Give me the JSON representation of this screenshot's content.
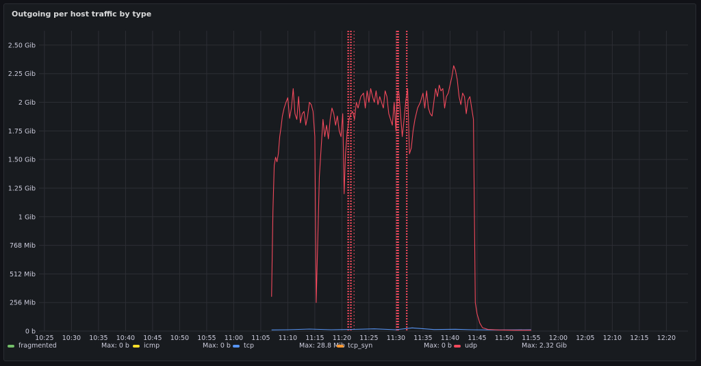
{
  "panel": {
    "title": "Outgoing per host traffic by type"
  },
  "chart_data": {
    "type": "line",
    "title": "Outgoing per host traffic by type",
    "y_axis": {
      "unit": "Gib",
      "range": [
        0,
        2.625
      ],
      "ticks": [
        {
          "value": 0,
          "label": "0 b"
        },
        {
          "value": 0.25,
          "label": "256 Mib"
        },
        {
          "value": 0.5,
          "label": "512 Mib"
        },
        {
          "value": 0.75,
          "label": "768 Mib"
        },
        {
          "value": 1.0,
          "label": "1 Gib"
        },
        {
          "value": 1.25,
          "label": "1.25 Gib"
        },
        {
          "value": 1.5,
          "label": "1.50 Gib"
        },
        {
          "value": 1.75,
          "label": "1.75 Gib"
        },
        {
          "value": 2.0,
          "label": "2 Gib"
        },
        {
          "value": 2.25,
          "label": "2.25 Gib"
        },
        {
          "value": 2.5,
          "label": "2.50 Gib"
        }
      ]
    },
    "x_axis": {
      "range": [
        "10:24",
        "12:24"
      ],
      "ticks": [
        "10:25",
        "10:30",
        "10:35",
        "10:40",
        "10:45",
        "10:50",
        "10:55",
        "11:00",
        "11:05",
        "11:10",
        "11:15",
        "11:20",
        "11:25",
        "11:30",
        "11:35",
        "11:40",
        "11:45",
        "11:50",
        "11:55",
        "12:00",
        "12:05",
        "12:10",
        "12:15",
        "12:20"
      ]
    },
    "grid": true,
    "legend_placement": "bottom",
    "series": [
      {
        "name": "fragmented",
        "color": "#73bf69",
        "max_label": "Max: 0 b",
        "values": []
      },
      {
        "name": "icmp",
        "color": "#fade2a",
        "max_label": "Max: 0 b",
        "values": []
      },
      {
        "name": "tcp",
        "color": "#5794f2",
        "max_label": "Max: 28.8 Mib",
        "values": [
          [
            "11:07",
            0.01
          ],
          [
            "11:10",
            0.012
          ],
          [
            "11:14",
            0.018
          ],
          [
            "11:18",
            0.012
          ],
          [
            "11:22",
            0.015
          ],
          [
            "11:26",
            0.02
          ],
          [
            "11:30",
            0.012
          ],
          [
            "11:33",
            0.028
          ],
          [
            "11:37",
            0.014
          ],
          [
            "11:41",
            0.016
          ],
          [
            "11:44",
            0.012
          ],
          [
            "11:48",
            0.01
          ],
          [
            "11:52",
            0.011
          ],
          [
            "11:55",
            0.012
          ]
        ]
      },
      {
        "name": "tcp_syn",
        "color": "#ff9830",
        "max_label": "Max: 0 b",
        "values": []
      },
      {
        "name": "udp",
        "color": "#f2495c",
        "max_label": "Max: 2.32 Gib",
        "values": [
          [
            "11:07:00",
            0.3
          ],
          [
            "11:07:15",
            1.05
          ],
          [
            "11:07:30",
            1.45
          ],
          [
            "11:07:45",
            1.52
          ],
          [
            "11:08:00",
            1.48
          ],
          [
            "11:08:15",
            1.55
          ],
          [
            "11:08:30",
            1.7
          ],
          [
            "11:08:45",
            1.78
          ],
          [
            "11:09:00",
            1.88
          ],
          [
            "11:09:20",
            1.95
          ],
          [
            "11:09:40",
            2.0
          ],
          [
            "11:10:00",
            2.04
          ],
          [
            "11:10:20",
            1.86
          ],
          [
            "11:10:40",
            1.95
          ],
          [
            "11:11:00",
            2.12
          ],
          [
            "11:11:20",
            1.9
          ],
          [
            "11:11:40",
            1.85
          ],
          [
            "11:12:00",
            2.05
          ],
          [
            "11:12:20",
            1.82
          ],
          [
            "11:12:40",
            1.9
          ],
          [
            "11:13:00",
            1.92
          ],
          [
            "11:13:20",
            1.8
          ],
          [
            "11:13:40",
            1.88
          ],
          [
            "11:14:00",
            2.0
          ],
          [
            "11:14:20",
            1.98
          ],
          [
            "11:14:40",
            1.92
          ],
          [
            "11:15:00",
            1.7
          ],
          [
            "11:15:15",
            0.25
          ],
          [
            "11:15:30",
            0.7
          ],
          [
            "11:15:50",
            1.35
          ],
          [
            "11:16:10",
            1.6
          ],
          [
            "11:16:30",
            1.85
          ],
          [
            "11:16:50",
            1.7
          ],
          [
            "11:17:10",
            1.8
          ],
          [
            "11:17:30",
            1.68
          ],
          [
            "11:17:50",
            1.85
          ],
          [
            "11:18:10",
            1.95
          ],
          [
            "11:18:30",
            1.9
          ],
          [
            "11:18:50",
            1.8
          ],
          [
            "11:19:10",
            1.88
          ],
          [
            "11:19:30",
            1.75
          ],
          [
            "11:19:50",
            1.7
          ],
          [
            "11:20:10",
            1.9
          ],
          [
            "11:20:25",
            1.2
          ],
          [
            "11:20:40",
            1.55
          ],
          [
            "11:21:00",
            1.75
          ],
          [
            "11:21:20",
            1.85
          ],
          [
            "11:21:40",
            1.9
          ],
          [
            "11:22:00",
            1.92
          ],
          [
            "11:22:20",
            1.85
          ],
          [
            "11:22:40",
            2.0
          ],
          [
            "11:23:00",
            1.95
          ],
          [
            "11:23:30",
            2.05
          ],
          [
            "11:24:00",
            2.08
          ],
          [
            "11:24:20",
            1.95
          ],
          [
            "11:24:40",
            2.1
          ],
          [
            "11:25:00",
            2.0
          ],
          [
            "11:25:20",
            2.12
          ],
          [
            "11:25:40",
            2.05
          ],
          [
            "11:26:00",
            2.0
          ],
          [
            "11:26:20",
            2.1
          ],
          [
            "11:26:40",
            1.98
          ],
          [
            "11:27:00",
            2.05
          ],
          [
            "11:27:20",
            2.0
          ],
          [
            "11:27:40",
            1.95
          ],
          [
            "11:28:00",
            2.1
          ],
          [
            "11:28:20",
            2.05
          ],
          [
            "11:28:40",
            1.9
          ],
          [
            "11:29:00",
            1.85
          ],
          [
            "11:29:20",
            1.8
          ],
          [
            "11:29:40",
            2.0
          ],
          [
            "11:30:00",
            1.75
          ],
          [
            "11:30:15",
            2.08
          ],
          [
            "11:30:30",
            2.1
          ],
          [
            "11:30:50",
            1.9
          ],
          [
            "11:31:10",
            1.7
          ],
          [
            "11:31:30",
            1.85
          ],
          [
            "11:31:50",
            2.02
          ],
          [
            "11:32:10",
            2.12
          ],
          [
            "11:32:30",
            1.55
          ],
          [
            "11:32:50",
            1.6
          ],
          [
            "11:33:10",
            1.75
          ],
          [
            "11:33:30",
            1.85
          ],
          [
            "11:34:00",
            1.95
          ],
          [
            "11:34:30",
            2.0
          ],
          [
            "11:35:00",
            2.08
          ],
          [
            "11:35:20",
            1.95
          ],
          [
            "11:35:40",
            2.1
          ],
          [
            "11:36:00",
            1.95
          ],
          [
            "11:36:20",
            1.9
          ],
          [
            "11:36:40",
            1.88
          ],
          [
            "11:37:00",
            2.0
          ],
          [
            "11:37:20",
            2.12
          ],
          [
            "11:37:40",
            2.05
          ],
          [
            "11:38:00",
            2.15
          ],
          [
            "11:38:20",
            2.1
          ],
          [
            "11:38:40",
            2.12
          ],
          [
            "11:39:00",
            1.95
          ],
          [
            "11:39:20",
            2.05
          ],
          [
            "11:39:40",
            2.08
          ],
          [
            "11:40:00",
            2.15
          ],
          [
            "11:40:20",
            2.22
          ],
          [
            "11:40:40",
            2.32
          ],
          [
            "11:41:00",
            2.28
          ],
          [
            "11:41:20",
            2.2
          ],
          [
            "11:41:40",
            2.05
          ],
          [
            "11:42:00",
            1.98
          ],
          [
            "11:42:20",
            2.08
          ],
          [
            "11:42:40",
            2.05
          ],
          [
            "11:43:00",
            1.9
          ],
          [
            "11:43:20",
            2.02
          ],
          [
            "11:43:40",
            2.05
          ],
          [
            "11:44:00",
            1.95
          ],
          [
            "11:44:20",
            1.85
          ],
          [
            "11:44:40",
            0.25
          ],
          [
            "11:45:00",
            0.15
          ],
          [
            "11:45:30",
            0.07
          ],
          [
            "11:46:00",
            0.03
          ],
          [
            "11:47:00",
            0.015
          ],
          [
            "11:49:00",
            0.01
          ],
          [
            "11:52:00",
            0.008
          ],
          [
            "11:55:00",
            0.008
          ]
        ]
      }
    ],
    "annotations": [
      {
        "time": "11:21:10",
        "style": "dotted",
        "color": "#f2495c"
      },
      {
        "time": "11:21:40",
        "style": "dotted",
        "color": "#f2495c"
      },
      {
        "time": "11:22:15",
        "style": "dotted-thin",
        "color": "#f2495c"
      },
      {
        "time": "11:30:10",
        "style": "dotted",
        "color": "#f2495c"
      },
      {
        "time": "11:30:25",
        "style": "dotted",
        "color": "#f2495c"
      },
      {
        "time": "11:32:00",
        "style": "dotted",
        "color": "#f2495c"
      }
    ]
  }
}
